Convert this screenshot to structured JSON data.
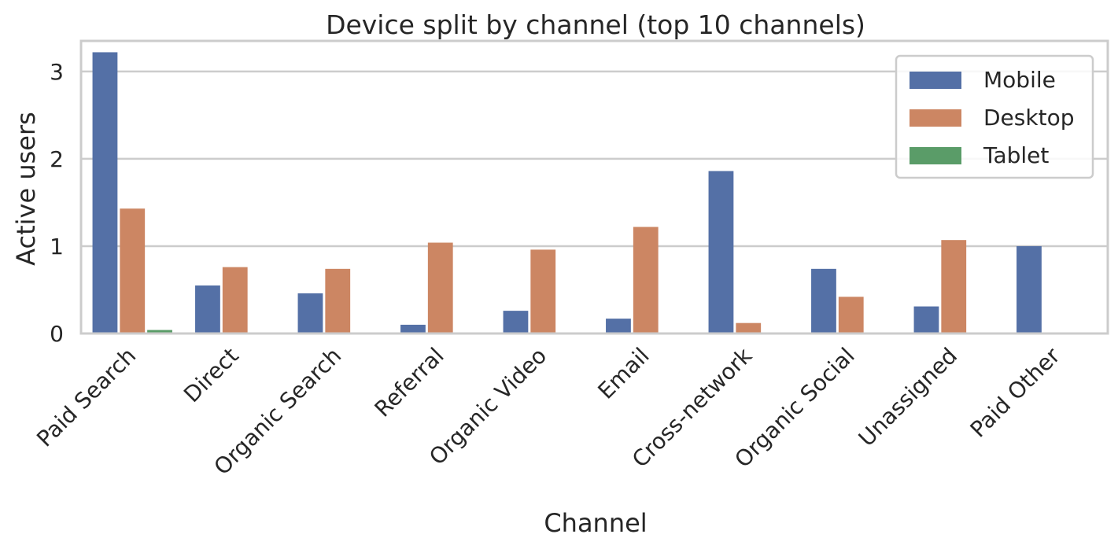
{
  "chart_data": {
    "type": "bar",
    "title": "Device split by channel (top 10 channels)",
    "xlabel": "Channel",
    "ylabel": "Active users",
    "categories": [
      "Paid Search",
      "Direct",
      "Organic Search",
      "Referral",
      "Organic Video",
      "Email",
      "Cross-network",
      "Organic Social",
      "Unassigned",
      "Paid Other"
    ],
    "series": [
      {
        "name": "Mobile",
        "color": "#5470a6",
        "values": [
          3.22,
          0.55,
          0.46,
          0.1,
          0.26,
          0.17,
          1.86,
          0.74,
          0.31,
          1.0
        ]
      },
      {
        "name": "Desktop",
        "color": "#cc8663",
        "values": [
          1.43,
          0.76,
          0.74,
          1.04,
          0.96,
          1.22,
          0.12,
          0.42,
          1.07,
          0
        ]
      },
      {
        "name": "Tablet",
        "color": "#5a9c68",
        "values": [
          0.04,
          0,
          0,
          0,
          0,
          0,
          0,
          0,
          0,
          0
        ]
      }
    ],
    "ylim": [
      0,
      3.35
    ],
    "yticks": [
      "0",
      "1",
      "2",
      "3"
    ],
    "grid": true,
    "legend_position": "top-right"
  }
}
